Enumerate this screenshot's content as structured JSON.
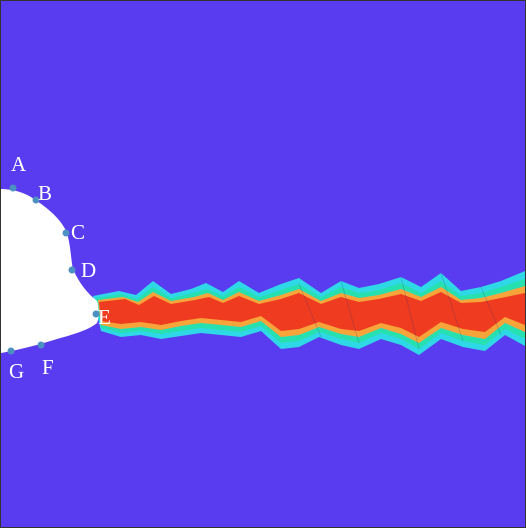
{
  "figure": {
    "colors": {
      "background": "#5a3cf0",
      "band_outer": "#2fd8e6",
      "band_mid": "#27e0b0",
      "band_inner": "#f7a43a",
      "core": "#ef3b1f",
      "hole": "#ffffff",
      "point": "#4d90c2",
      "label": "#ffffff"
    },
    "points": [
      {
        "label": "A"
      },
      {
        "label": "B"
      },
      {
        "label": "C"
      },
      {
        "label": "D"
      },
      {
        "label": "E"
      },
      {
        "label": "F"
      },
      {
        "label": "G"
      }
    ]
  }
}
